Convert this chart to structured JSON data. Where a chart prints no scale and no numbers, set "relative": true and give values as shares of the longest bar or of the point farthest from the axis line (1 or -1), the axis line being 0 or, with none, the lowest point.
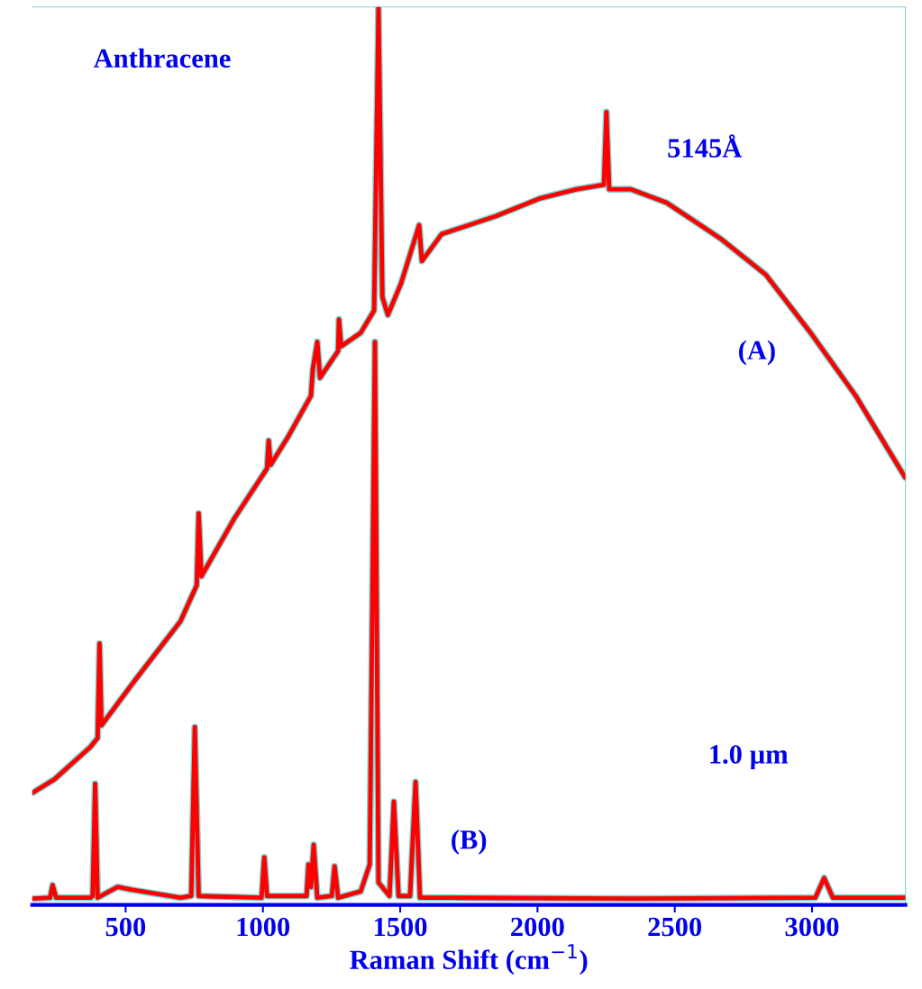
{
  "chart_data": {
    "type": "line",
    "title": "Anthracene",
    "xlabel": "Raman Shift (cm$^{−1}$)",
    "relative": true,
    "xlim": [
      160,
      3340
    ],
    "xticks": [
      500,
      1000,
      1500,
      2000,
      2500,
      3000
    ],
    "grid": false,
    "legend": false,
    "annotations": [
      "5145Å",
      "1.0 µm"
    ],
    "series": [
      {
        "name": "(A)",
        "color": "#ff0000",
        "x": [
          162,
          241,
          372,
          398,
          405,
          412,
          536,
          700,
          759,
          766,
          776,
          897,
          1015,
          1021,
          1028,
          1093,
          1175,
          1182,
          1198,
          1208,
          1274,
          1277,
          1285,
          1356,
          1405,
          1421,
          1435,
          1455,
          1503,
          1569,
          1579,
          1651,
          1848,
          2011,
          2143,
          2242,
          2251,
          2261,
          2339,
          2470,
          2667,
          2831,
          2995,
          3159,
          3339
        ],
        "values": [
          0.125,
          0.14,
          0.176,
          0.186,
          0.291,
          0.2,
          0.251,
          0.316,
          0.356,
          0.436,
          0.366,
          0.431,
          0.486,
          0.517,
          0.49,
          0.522,
          0.567,
          0.597,
          0.627,
          0.587,
          0.617,
          0.652,
          0.622,
          0.637,
          0.662,
          1.0,
          0.677,
          0.657,
          0.692,
          0.757,
          0.717,
          0.747,
          0.767,
          0.787,
          0.797,
          0.802,
          0.883,
          0.797,
          0.797,
          0.782,
          0.742,
          0.702,
          0.637,
          0.567,
          0.476
        ]
      },
      {
        "name": "(B)",
        "color": "#ff0000",
        "x": [
          162,
          225,
          234,
          247,
          372,
          380,
          389,
          398,
          471,
          520,
          700,
          739,
          752,
          766,
          995,
          1005,
          1015,
          1159,
          1166,
          1175,
          1185,
          1198,
          1251,
          1261,
          1274,
          1356,
          1389,
          1408,
          1421,
          1461,
          1477,
          1494,
          1536,
          1556,
          1572,
          1684,
          2339,
          3012,
          3044,
          3076,
          3339
        ],
        "values": [
          0.007,
          0.008,
          0.022,
          0.008,
          0.008,
          0.01,
          0.135,
          0.008,
          0.02,
          0.017,
          0.008,
          0.01,
          0.198,
          0.01,
          0.008,
          0.053,
          0.01,
          0.01,
          0.045,
          0.02,
          0.067,
          0.008,
          0.01,
          0.043,
          0.008,
          0.015,
          0.045,
          0.627,
          0.025,
          0.01,
          0.115,
          0.01,
          0.01,
          0.137,
          0.008,
          0.008,
          0.007,
          0.008,
          0.03,
          0.008,
          0.008
        ]
      }
    ]
  }
}
